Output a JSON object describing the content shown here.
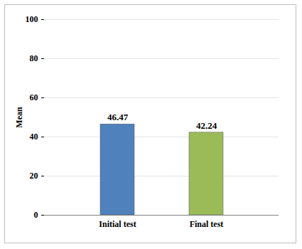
{
  "chart_data": {
    "type": "bar",
    "categories": [
      "Initial test",
      "Final test"
    ],
    "values": [
      46.47,
      42.24
    ],
    "colors": [
      "#4f81bd",
      "#9bbb59"
    ],
    "ylabel": "Mean",
    "ylim": [
      0,
      100
    ],
    "yticks": [
      0,
      20,
      40,
      60,
      80,
      100
    ],
    "grid": true,
    "data_labels": true
  }
}
